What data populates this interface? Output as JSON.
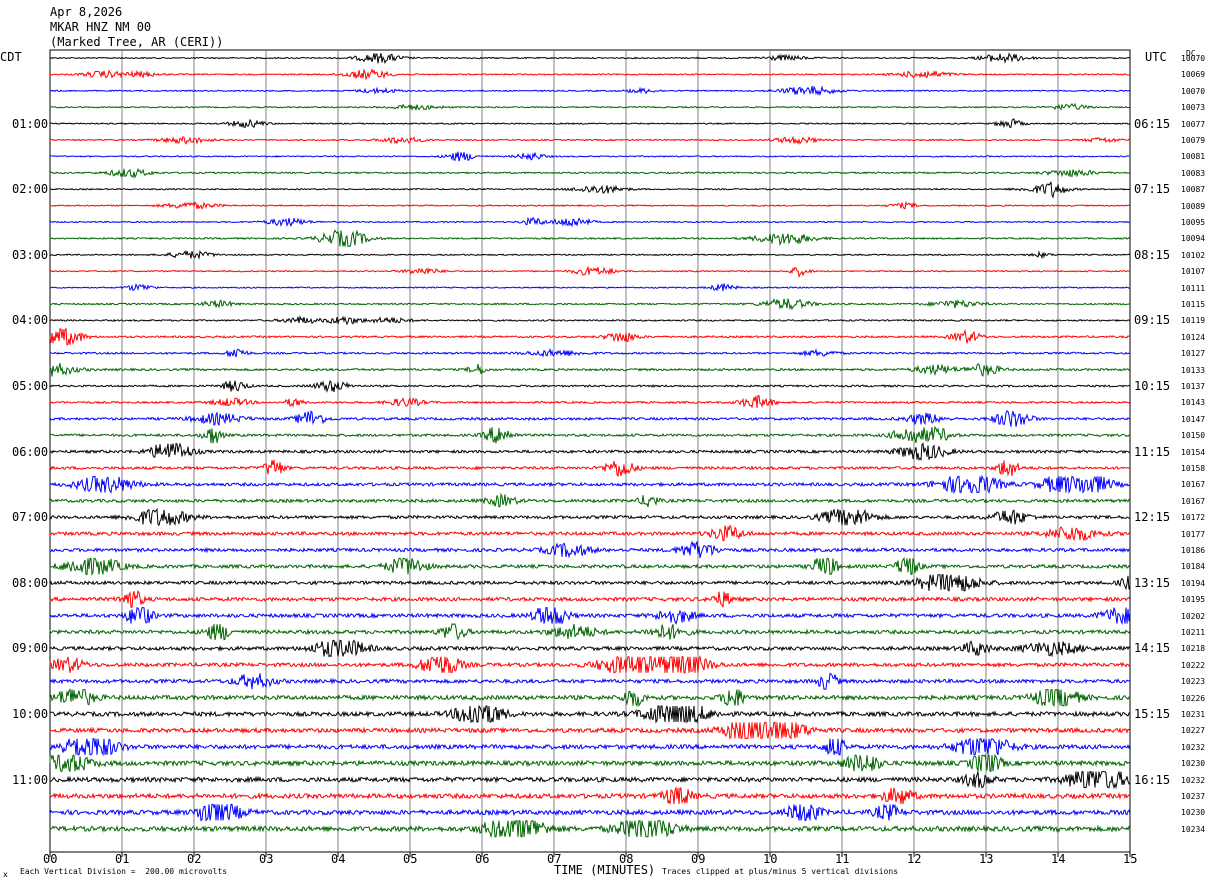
{
  "header": {
    "date": "Apr 8,2026",
    "station": "MKAR HNZ NM 00",
    "location": "(Marked Tree, AR (CERI))"
  },
  "axes": {
    "left_label": "CDT",
    "right_label": "UTC",
    "dc_label": "DC",
    "xlabel": "TIME (MINUTES)"
  },
  "footer": {
    "scale_note": "Each Vertical Division =  200.00 microvolts",
    "clip_note": "Traces clipped at plus/minus 5 vertical divisions",
    "corner_mark": "x"
  },
  "colors": {
    "black": "#000000",
    "red": "#ff0000",
    "blue": "#0000ff",
    "green": "#006400",
    "grid": "#808080"
  },
  "chart_data": {
    "type": "line",
    "title": "MKAR HNZ NM 00",
    "xlim": [
      0,
      15
    ],
    "x_ticks": [
      "00",
      "01",
      "02",
      "03",
      "04",
      "05",
      "06",
      "07",
      "08",
      "09",
      "10",
      "11",
      "12",
      "13",
      "14",
      "15"
    ],
    "rows_per_hour": 4,
    "trace_color_cycle": [
      "black",
      "red",
      "blue",
      "green"
    ],
    "left_hour_labels": [
      "01:00",
      "02:00",
      "03:00",
      "04:00",
      "05:00",
      "06:00",
      "07:00",
      "08:00",
      "09:00",
      "10:00",
      "11:00"
    ],
    "right_hour_labels": [
      "06:15",
      "07:15",
      "08:15",
      "09:15",
      "10:15",
      "11:15",
      "12:15",
      "13:15",
      "14:15",
      "15:15",
      "16:15"
    ],
    "dc_offsets": [
      "10070",
      "10069",
      "10070",
      "10073",
      "10077",
      "10079",
      "10081",
      "10083",
      "10087",
      "10089",
      "10095",
      "10094",
      "10102",
      "10107",
      "10111",
      "10115",
      "10119",
      "10124",
      "10127",
      "10133",
      "10137",
      "10143",
      "10147",
      "10150",
      "10154",
      "10158",
      "10167",
      "10167",
      "10172",
      "10177",
      "10186",
      "10184",
      "10194",
      "10195",
      "10202",
      "10211",
      "10218",
      "10222",
      "10223",
      "10226",
      "10231",
      "10227",
      "10232",
      "10230",
      "10232",
      "10237",
      "10230",
      "10234"
    ],
    "trace_amplitude_levels": [
      0.2,
      0.2,
      0.2,
      0.2,
      0.2,
      0.2,
      0.2,
      0.25,
      0.2,
      0.2,
      0.2,
      0.25,
      0.2,
      0.2,
      0.2,
      0.25,
      0.25,
      0.3,
      0.3,
      0.35,
      0.3,
      0.3,
      0.4,
      0.4,
      0.45,
      0.45,
      0.5,
      0.5,
      0.5,
      0.55,
      0.55,
      0.55,
      0.55,
      0.6,
      0.6,
      0.6,
      0.6,
      0.6,
      0.6,
      0.7,
      0.7,
      0.7,
      0.7,
      0.75,
      0.75,
      0.75,
      0.75,
      0.8
    ]
  }
}
